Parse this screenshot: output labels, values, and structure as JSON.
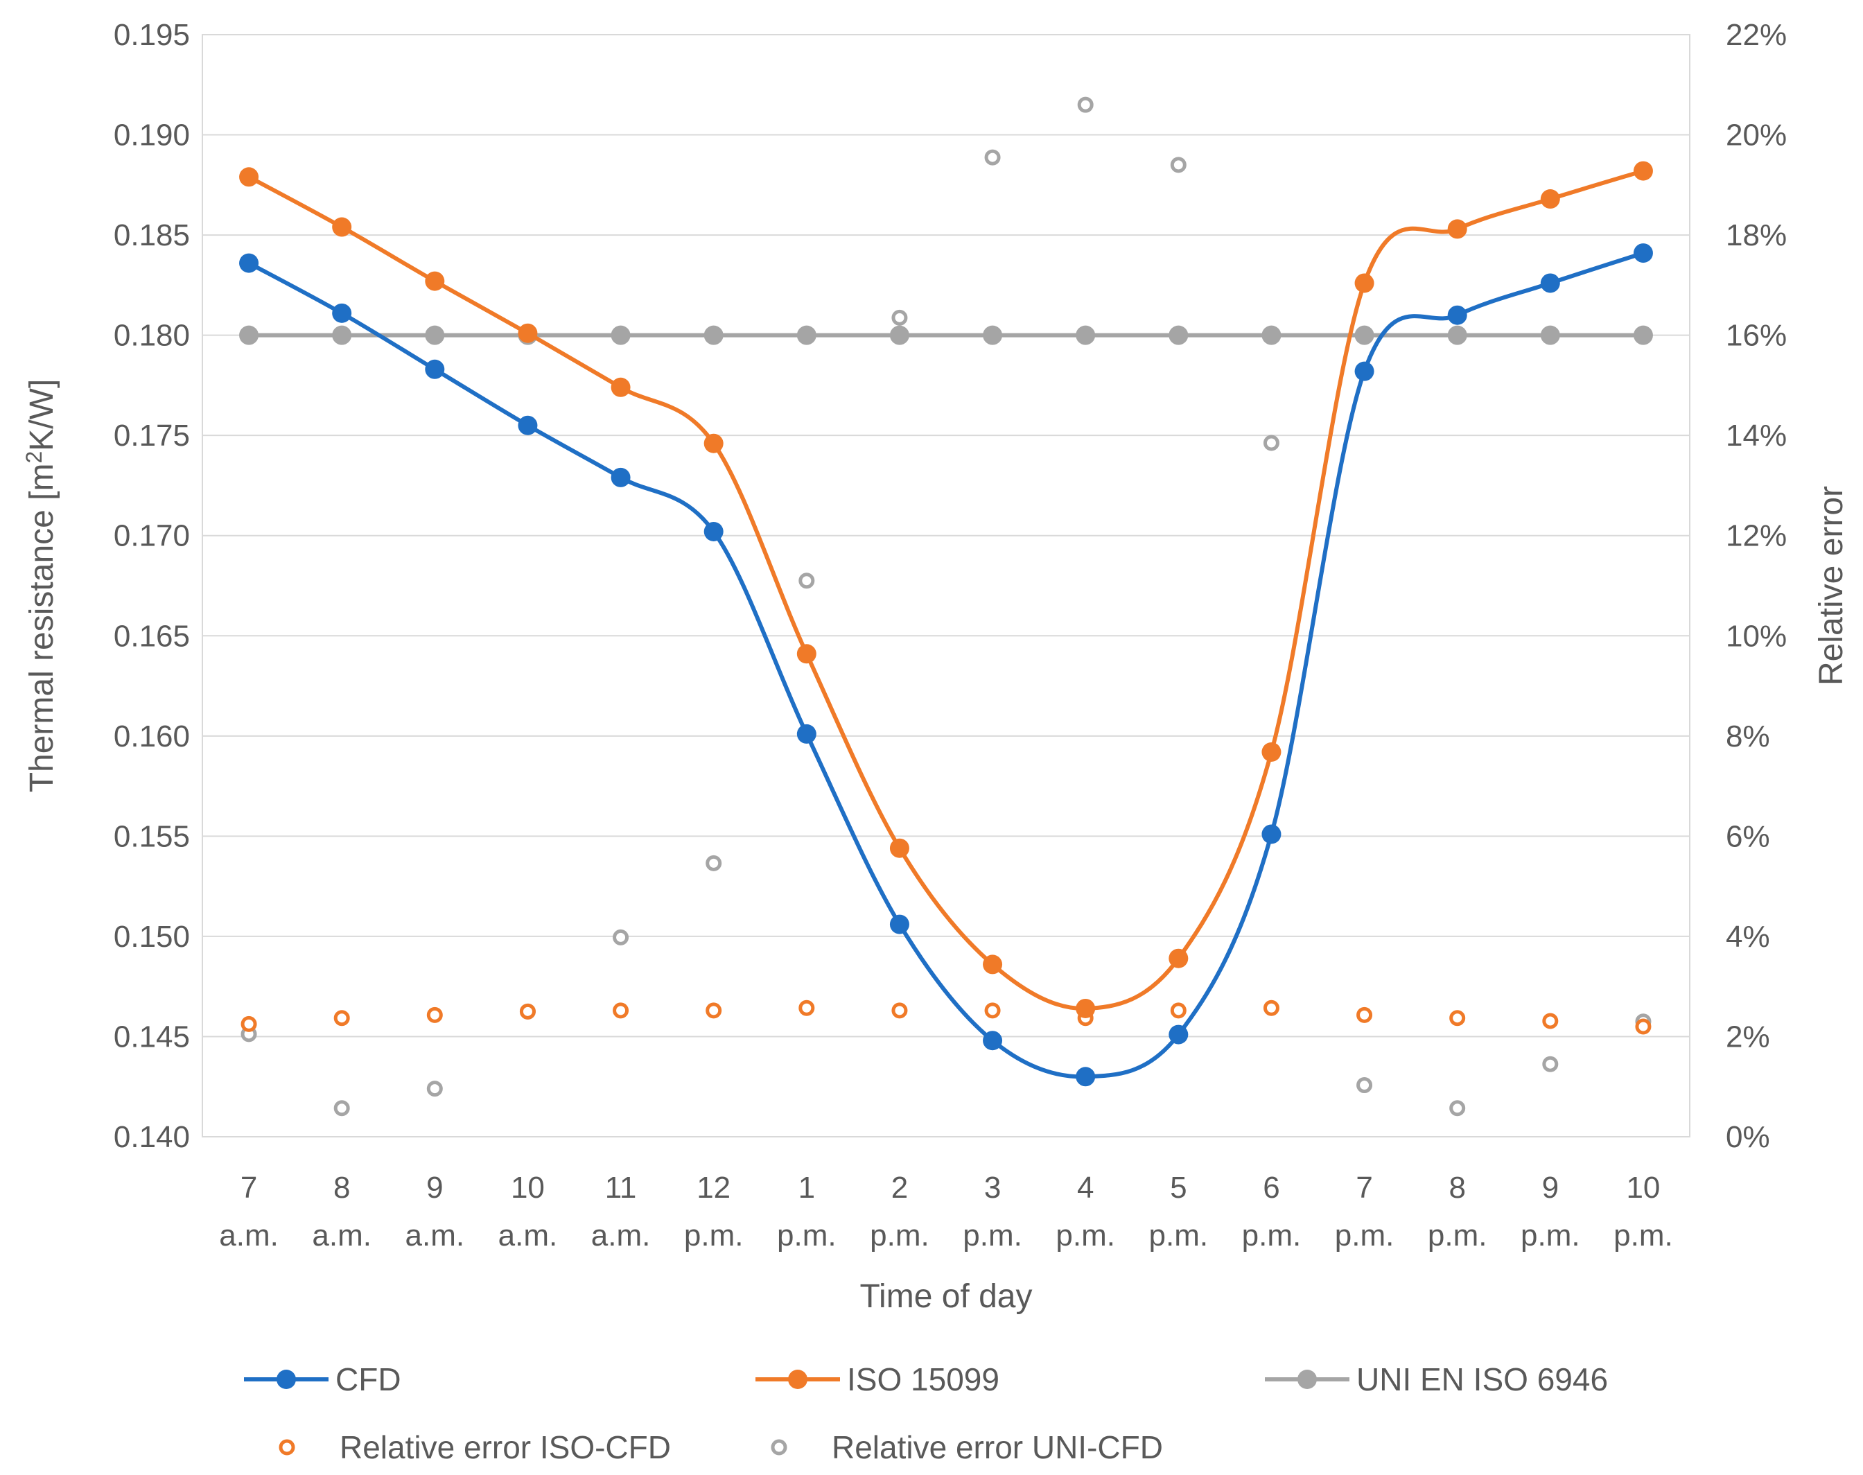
{
  "chart_data": {
    "type": "line",
    "title": "",
    "xlabel": "Time of day",
    "ylabel": "Thermal resistance [m²K/W]",
    "ylabel_parts": {
      "before": "Thermal resistance [m",
      "sup": "2",
      "after": "K/W]"
    },
    "y2label": "Relative error",
    "ylim": [
      0.14,
      0.195
    ],
    "y2lim": [
      0,
      0.22
    ],
    "yticks": [
      "0.140",
      "0.145",
      "0.150",
      "0.155",
      "0.160",
      "0.165",
      "0.170",
      "0.175",
      "0.180",
      "0.185",
      "0.190",
      "0.195"
    ],
    "y2ticks": [
      "0%",
      "2%",
      "4%",
      "6%",
      "8%",
      "10%",
      "12%",
      "14%",
      "16%",
      "18%",
      "20%",
      "22%"
    ],
    "categories": [
      {
        "hour": "7",
        "period": "a.m."
      },
      {
        "hour": "8",
        "period": "a.m."
      },
      {
        "hour": "9",
        "period": "a.m."
      },
      {
        "hour": "10",
        "period": "a.m."
      },
      {
        "hour": "11",
        "period": "a.m."
      },
      {
        "hour": "12",
        "period": "p.m."
      },
      {
        "hour": "1",
        "period": "p.m."
      },
      {
        "hour": "2",
        "period": "p.m."
      },
      {
        "hour": "3",
        "period": "p.m."
      },
      {
        "hour": "4",
        "period": "p.m."
      },
      {
        "hour": "5",
        "period": "p.m."
      },
      {
        "hour": "6",
        "period": "p.m."
      },
      {
        "hour": "7",
        "period": "p.m."
      },
      {
        "hour": "8",
        "period": "p.m."
      },
      {
        "hour": "9",
        "period": "p.m."
      },
      {
        "hour": "10",
        "period": "p.m."
      }
    ],
    "series": [
      {
        "name": "CFD",
        "axis": "left",
        "kind": "line",
        "color": "#1f6fc5",
        "values": [
          0.1836,
          0.1811,
          0.1783,
          0.1755,
          0.1729,
          0.1702,
          0.1601,
          0.1506,
          0.1448,
          0.143,
          0.1451,
          0.1551,
          0.1782,
          0.181,
          0.1826,
          0.1841
        ]
      },
      {
        "name": "ISO 15099",
        "axis": "left",
        "kind": "line",
        "color": "#f07a28",
        "values": [
          0.1879,
          0.1854,
          0.1827,
          0.1801,
          0.1774,
          0.1746,
          0.1641,
          0.1544,
          0.1486,
          0.1464,
          0.1489,
          0.1592,
          0.1826,
          0.1853,
          0.1868,
          0.1882
        ]
      },
      {
        "name": "UNI EN ISO 6946",
        "axis": "left",
        "kind": "line",
        "color": "#a5a5a5",
        "values": [
          0.18,
          0.18,
          0.18,
          0.18,
          0.18,
          0.18,
          0.18,
          0.18,
          0.18,
          0.18,
          0.18,
          0.18,
          0.18,
          0.18,
          0.18,
          0.18
        ]
      },
      {
        "name": "Relative error ISO-CFD",
        "axis": "right",
        "kind": "scatter",
        "color": "#f07a28",
        "values": [
          0.0225,
          0.0237,
          0.0243,
          0.025,
          0.0252,
          0.0252,
          0.0257,
          0.0252,
          0.0252,
          0.0237,
          0.0252,
          0.0257,
          0.0243,
          0.0237,
          0.0231,
          0.022
        ]
      },
      {
        "name": "Relative error UNI-CFD",
        "axis": "right",
        "kind": "scatter",
        "color": "#a5a5a5",
        "values": [
          0.0205,
          0.0057,
          0.0096,
          0.025,
          0.0398,
          0.0546,
          0.111,
          0.1635,
          0.1955,
          0.206,
          0.194,
          0.1385,
          0.0103,
          0.0057,
          0.0145,
          0.023
        ]
      }
    ],
    "legend": {
      "position": "bottom",
      "items": [
        {
          "label": "CFD",
          "series": 0
        },
        {
          "label": "ISO 15099",
          "series": 1
        },
        {
          "label": "UNI EN ISO 6946",
          "series": 2
        },
        {
          "label": "Relative error ISO-CFD",
          "series": 3
        },
        {
          "label": "Relative error UNI-CFD",
          "series": 4
        }
      ]
    },
    "colors": {
      "grid": "#d9d9d9",
      "text": "#595959"
    }
  }
}
